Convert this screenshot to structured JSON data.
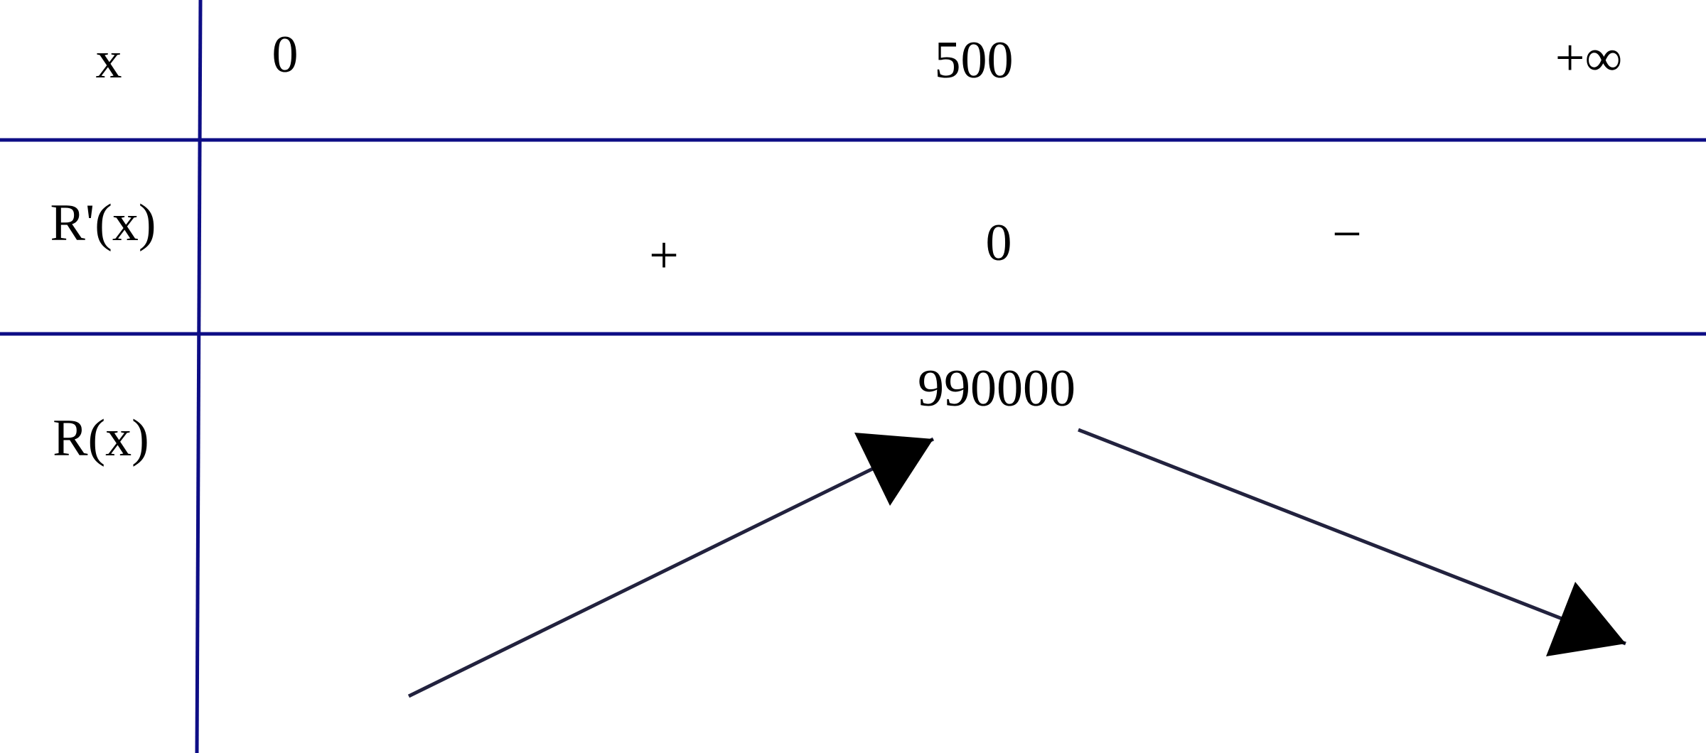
{
  "table": {
    "rows": [
      {
        "label": "x",
        "cells": [
          "0",
          "500",
          "+∞"
        ]
      },
      {
        "label": "R'(x)",
        "cells": [
          "+",
          "0",
          "−"
        ]
      },
      {
        "label": "R(x)",
        "cells": [
          "990000"
        ]
      }
    ]
  }
}
